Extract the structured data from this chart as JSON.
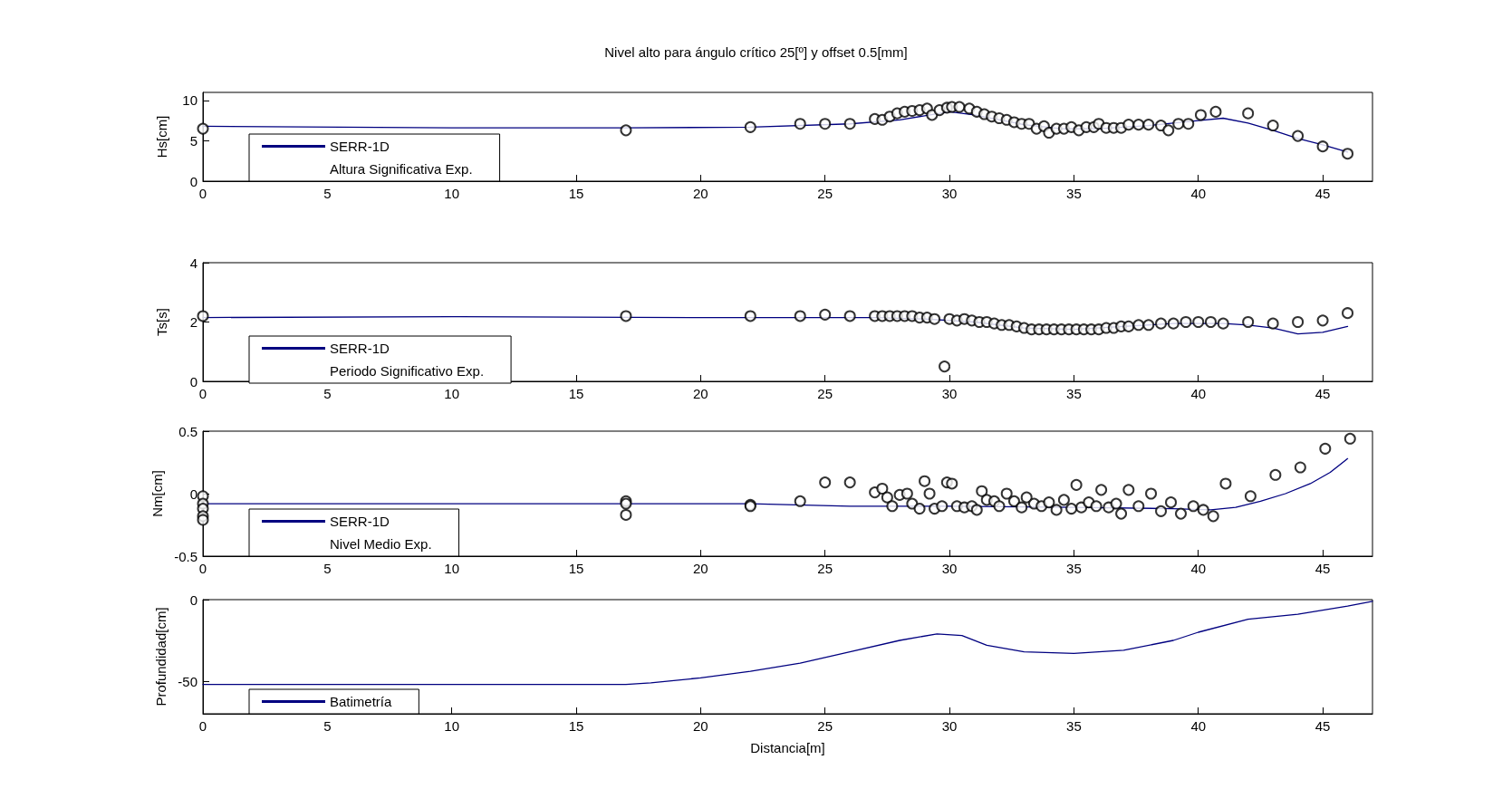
{
  "chart_data": [
    {
      "type": "scatter",
      "title": "Nivel alto para ángulo crítico 25[º] y offset 0.5[mm]",
      "ylabel": "Hs[cm]",
      "xlim": [
        0,
        47
      ],
      "xticks": [
        0,
        5,
        10,
        15,
        20,
        25,
        30,
        35,
        40,
        45
      ],
      "ylim": [
        0,
        11
      ],
      "yticks": [
        0,
        5,
        10
      ],
      "legend": "bottom left",
      "grid": false,
      "series": [
        {
          "name": "SERR-1D",
          "type": "line",
          "marker": "none",
          "line_style": "solid",
          "color": "#000080",
          "x": [
            0,
            10,
            17,
            22,
            26,
            28,
            30,
            31,
            33,
            34.5,
            36,
            38,
            40,
            41,
            42,
            43,
            44,
            45,
            46
          ],
          "values": [
            6.8,
            6.6,
            6.6,
            6.7,
            7.1,
            7.6,
            8.6,
            8.2,
            7,
            6.5,
            6.5,
            6.9,
            7.5,
            7.8,
            7.2,
            6.3,
            5.3,
            4.5,
            3.6
          ]
        },
        {
          "name": "Altura Significativa Exp.",
          "marker": "circle",
          "color": "#000000",
          "x": [
            0,
            17,
            22,
            24,
            25,
            26,
            27,
            27.3,
            27.6,
            27.9,
            28.2,
            28.5,
            28.8,
            29.1,
            29.3,
            29.6,
            29.9,
            30.1,
            30.4,
            30.8,
            31.1,
            31.4,
            31.7,
            32,
            32.3,
            32.6,
            32.9,
            33.2,
            33.5,
            33.8,
            34,
            34.3,
            34.6,
            34.9,
            35.2,
            35.5,
            35.8,
            36,
            36.3,
            36.6,
            36.9,
            37.2,
            37.6,
            38,
            38.5,
            38.8,
            39.2,
            39.6,
            40.1,
            40.7,
            42,
            43,
            44,
            45,
            46
          ],
          "values": [
            6.5,
            6.3,
            6.7,
            7.1,
            7.1,
            7.1,
            7.7,
            7.6,
            8,
            8.4,
            8.6,
            8.7,
            8.8,
            9,
            8.2,
            8.8,
            9.1,
            9.2,
            9.2,
            9,
            8.6,
            8.3,
            8,
            7.8,
            7.6,
            7.3,
            7.1,
            7.1,
            6.5,
            6.8,
            6,
            6.5,
            6.5,
            6.7,
            6.3,
            6.7,
            6.7,
            7.1,
            6.6,
            6.6,
            6.6,
            7,
            7,
            7,
            6.9,
            6.3,
            7.1,
            7.1,
            8.2,
            8.6,
            8.4,
            6.9,
            5.6,
            4.3,
            3.4
          ]
        }
      ]
    },
    {
      "type": "scatter",
      "ylabel": "Ts[s]",
      "xlim": [
        0,
        47
      ],
      "xticks": [
        0,
        5,
        10,
        15,
        20,
        25,
        30,
        35,
        40,
        45
      ],
      "ylim": [
        0,
        4
      ],
      "yticks": [
        0,
        2,
        4
      ],
      "legend": "bottom left",
      "grid": false,
      "series": [
        {
          "name": "SERR-1D",
          "type": "line",
          "marker": "none",
          "line_style": "solid",
          "color": "#000080",
          "x": [
            0,
            10,
            20,
            27,
            29,
            31,
            33,
            35,
            37,
            39,
            41,
            42,
            43,
            44,
            45,
            46
          ],
          "values": [
            2.15,
            2.18,
            2.15,
            2.15,
            2.1,
            2,
            1.8,
            1.75,
            1.85,
            1.95,
            1.95,
            1.9,
            1.8,
            1.6,
            1.65,
            1.85
          ]
        },
        {
          "name": "Periodo Significativo Exp.",
          "marker": "circle",
          "color": "#000000",
          "x": [
            0,
            17,
            22,
            24,
            25,
            26,
            27,
            27.3,
            27.6,
            27.9,
            28.2,
            28.5,
            28.8,
            29.1,
            29.4,
            29.8,
            30,
            30.3,
            30.6,
            30.9,
            31.2,
            31.5,
            31.8,
            32.1,
            32.4,
            32.7,
            33,
            33.3,
            33.6,
            33.9,
            34.2,
            34.5,
            34.8,
            35.1,
            35.4,
            35.7,
            36,
            36.3,
            36.6,
            36.9,
            37.2,
            37.6,
            38,
            38.5,
            39,
            39.5,
            40,
            40.5,
            41,
            42,
            43,
            44,
            45,
            46
          ],
          "values": [
            2.2,
            2.2,
            2.2,
            2.2,
            2.25,
            2.2,
            2.2,
            2.2,
            2.2,
            2.2,
            2.2,
            2.2,
            2.15,
            2.15,
            2.1,
            0.5,
            2.1,
            2.05,
            2.1,
            2.05,
            2,
            2,
            1.95,
            1.9,
            1.9,
            1.85,
            1.8,
            1.75,
            1.75,
            1.75,
            1.75,
            1.75,
            1.75,
            1.75,
            1.75,
            1.75,
            1.75,
            1.8,
            1.8,
            1.85,
            1.85,
            1.9,
            1.9,
            1.95,
            1.95,
            2,
            2,
            2,
            1.95,
            2,
            1.95,
            2,
            2.05,
            2.3
          ]
        }
      ]
    },
    {
      "type": "scatter",
      "ylabel": "Nm[cm]",
      "xlim": [
        0,
        47
      ],
      "xticks": [
        0,
        5,
        10,
        15,
        20,
        25,
        30,
        35,
        40,
        45
      ],
      "ylim": [
        -0.5,
        0.5
      ],
      "yticks": [
        -0.5,
        0,
        0.5
      ],
      "legend": "bottom left",
      "grid": false,
      "series": [
        {
          "name": "SERR-1D",
          "type": "line",
          "marker": "none",
          "line_style": "solid",
          "color": "#000080",
          "x": [
            0,
            17,
            22,
            26,
            30,
            35,
            39,
            40.5,
            41.5,
            42.5,
            43.5,
            44.5,
            45.3,
            46
          ],
          "values": [
            -0.08,
            -0.08,
            -0.08,
            -0.1,
            -0.1,
            -0.11,
            -0.12,
            -0.13,
            -0.11,
            -0.06,
            0,
            0.08,
            0.17,
            0.28
          ]
        },
        {
          "name": "Nivel Medio Exp.",
          "marker": "circle",
          "color": "#000000",
          "x": [
            0,
            0,
            0,
            0,
            0,
            17,
            17,
            17,
            22,
            22,
            24,
            25,
            26,
            27,
            27.3,
            27.5,
            27.7,
            28,
            28.3,
            28.5,
            28.8,
            29,
            29.2,
            29.4,
            29.7,
            29.9,
            30.1,
            30.3,
            30.6,
            30.9,
            31.1,
            31.3,
            31.5,
            31.8,
            32,
            32.3,
            32.6,
            32.9,
            33.1,
            33.4,
            33.7,
            34,
            34.3,
            34.6,
            34.9,
            35.1,
            35.3,
            35.6,
            35.9,
            36.1,
            36.4,
            36.7,
            36.9,
            37.2,
            37.6,
            38.1,
            38.5,
            38.9,
            39.3,
            39.8,
            40.2,
            40.6,
            41.1,
            42.1,
            43.1,
            44.1,
            45.1,
            46.1
          ],
          "values": [
            -0.02,
            -0.08,
            -0.12,
            -0.18,
            -0.21,
            -0.06,
            -0.08,
            -0.17,
            -0.09,
            -0.1,
            -0.06,
            0.09,
            0.09,
            0.01,
            0.04,
            -0.03,
            -0.1,
            -0.01,
            0,
            -0.08,
            -0.12,
            0.1,
            0,
            -0.12,
            -0.1,
            0.09,
            0.08,
            -0.1,
            -0.11,
            -0.1,
            -0.13,
            0.02,
            -0.05,
            -0.06,
            -0.1,
            0,
            -0.06,
            -0.11,
            -0.03,
            -0.08,
            -0.1,
            -0.07,
            -0.13,
            -0.05,
            -0.12,
            0.07,
            -0.11,
            -0.07,
            -0.1,
            0.03,
            -0.11,
            -0.08,
            -0.16,
            0.03,
            -0.1,
            0,
            -0.14,
            -0.07,
            -0.16,
            -0.1,
            -0.13,
            -0.18,
            0.08,
            -0.02,
            0.15,
            0.21,
            0.36,
            0.44
          ]
        }
      ]
    },
    {
      "type": "line",
      "xlabel": "Distancia[m]",
      "ylabel": "Profundidad[cm]",
      "xlim": [
        0,
        47
      ],
      "xticks": [
        0,
        5,
        10,
        15,
        20,
        25,
        30,
        35,
        40,
        45
      ],
      "ylim": [
        -70,
        0
      ],
      "yticks": [
        -50,
        0
      ],
      "legend": "bottom left",
      "grid": false,
      "series": [
        {
          "name": "Batimetría",
          "marker": "none",
          "line_style": "solid",
          "color": "#000080",
          "x": [
            0,
            17,
            18,
            20,
            22,
            24,
            26,
            28,
            29.5,
            30.5,
            31.5,
            33,
            35,
            37,
            39,
            40,
            42,
            44,
            46,
            47
          ],
          "values": [
            -52,
            -52,
            -51,
            -48,
            -44,
            -39,
            -32,
            -25,
            -21,
            -22,
            -28,
            -32,
            -33,
            -31,
            -25,
            -20,
            -12,
            -9,
            -4,
            -1
          ]
        }
      ]
    }
  ]
}
